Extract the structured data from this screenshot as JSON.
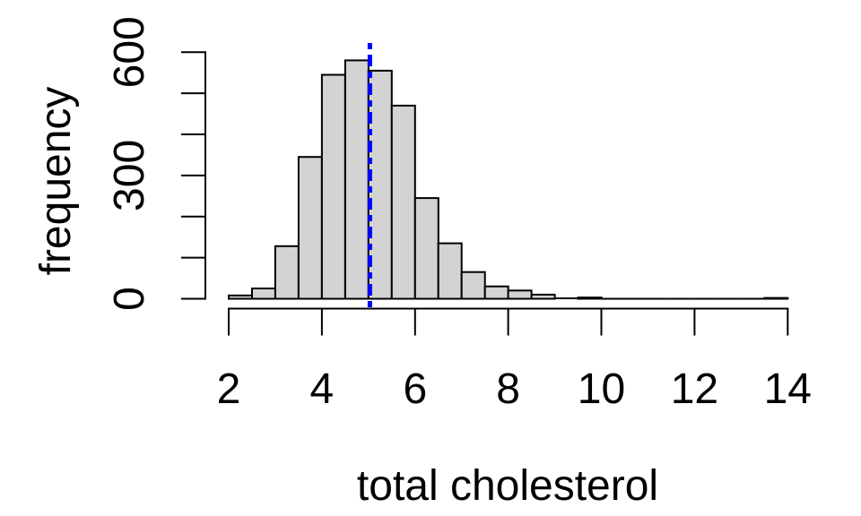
{
  "figure": {
    "background_color": "#FFFFFF"
  },
  "chart_data": {
    "type": "bar",
    "subtype": "histogram",
    "title": "",
    "xlabel": "total cholesterol",
    "ylabel": "frequency",
    "bins": {
      "start": 2,
      "width": 0.5,
      "end": 14
    },
    "categories": [
      "2.0-2.5",
      "2.5-3.0",
      "3.0-3.5",
      "3.5-4.0",
      "4.0-4.5",
      "4.5-5.0",
      "5.0-5.5",
      "5.5-6.0",
      "6.0-6.5",
      "6.5-7.0",
      "7.0-7.5",
      "7.5-8.0",
      "8.0-8.5",
      "8.5-9.0",
      "9.0-9.5",
      "9.5-10.0",
      "10.0-10.5",
      "10.5-11.0",
      "11.0-11.5",
      "11.5-12.0",
      "12.0-12.5",
      "12.5-13.0",
      "13.0-13.5",
      "13.5-14.0"
    ],
    "values": [
      8,
      25,
      128,
      345,
      545,
      580,
      555,
      470,
      245,
      135,
      65,
      30,
      20,
      10,
      1,
      3,
      0,
      0,
      0,
      0,
      0,
      0,
      0,
      2
    ],
    "xlim": [
      2,
      14
    ],
    "ylim": [
      0,
      600
    ],
    "x_tick_values": [
      2,
      4,
      6,
      8,
      10,
      12,
      14
    ],
    "x_tick_labels": [
      "2",
      "4",
      "6",
      "8",
      "10",
      "12",
      "14"
    ],
    "y_tick_values": [
      0,
      100,
      200,
      300,
      400,
      500,
      600
    ],
    "y_tick_labels": [
      {
        "value": 0,
        "label": "0"
      },
      {
        "value": 300,
        "label": "300"
      },
      {
        "value": 600,
        "label": "600"
      }
    ],
    "grid": false,
    "legend": null,
    "mean_line": {
      "x": 5.03,
      "color": "#0000FF",
      "line_style": "dot-dash",
      "line_width": 5
    },
    "bar_fill_color": "#D3D3D3",
    "bar_border_color": "#000000",
    "axis_color": "#000000",
    "text_color": "#000000"
  }
}
